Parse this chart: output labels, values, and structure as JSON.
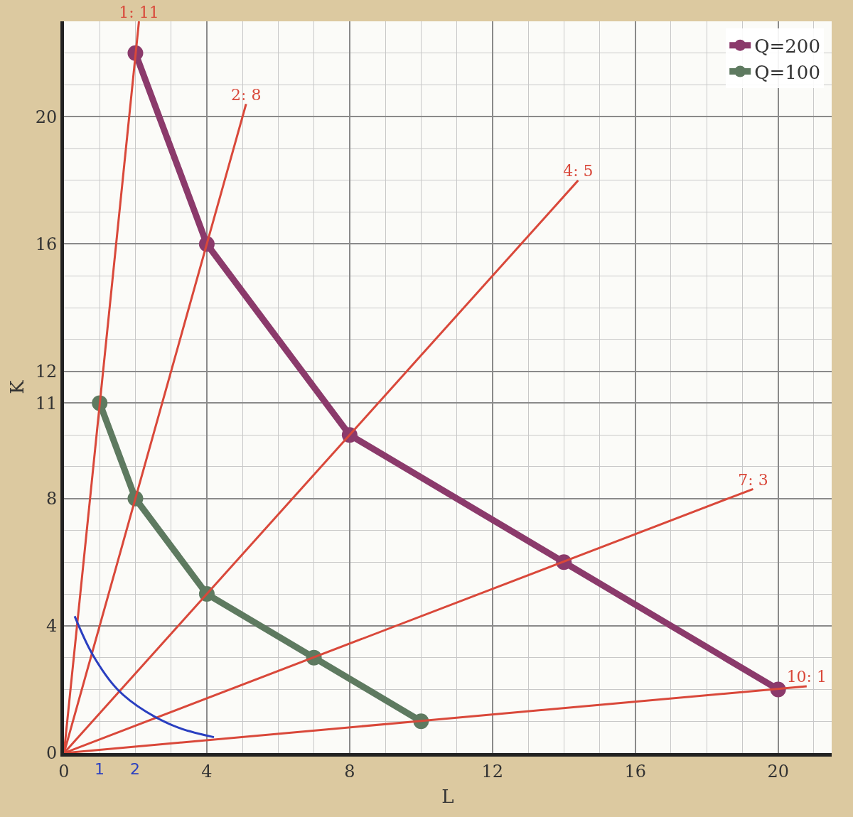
{
  "chart_data": {
    "type": "line",
    "xlabel": "L",
    "ylabel": "K",
    "xlim": [
      0,
      21.5
    ],
    "ylim": [
      0,
      23
    ],
    "xticks": [
      0,
      4,
      8,
      12,
      16,
      20
    ],
    "yticks": [
      0,
      4,
      8,
      11,
      12,
      16,
      20
    ],
    "grid": true,
    "legend": "top right",
    "marker": "circle",
    "line_style": "solid",
    "series": [
      {
        "name": "Q=200",
        "color": "#8b3a6b",
        "x": [
          2,
          4,
          8,
          14,
          20
        ],
        "values": [
          22,
          16,
          10,
          6,
          2
        ]
      },
      {
        "name": "Q=100",
        "color": "#5e7a60",
        "x": [
          1,
          2,
          4,
          7,
          10
        ],
        "values": [
          11,
          8,
          5,
          3,
          1
        ]
      },
      {
        "name": "1: 11",
        "marker": "none",
        "color": "#d9483a",
        "x": [
          0,
          2.1
        ],
        "values": [
          0,
          23
        ]
      },
      {
        "name": "2: 8",
        "marker": "none",
        "color": "#d9483a",
        "x": [
          0,
          5.1
        ],
        "values": [
          0,
          20.4
        ]
      },
      {
        "name": "4: 5",
        "marker": "none",
        "color": "#d9483a",
        "x": [
          0,
          14.4
        ],
        "values": [
          0,
          18
        ]
      },
      {
        "name": "7: 3",
        "marker": "none",
        "color": "#d9483a",
        "x": [
          0,
          19.3
        ],
        "values": [
          0,
          8.3
        ]
      },
      {
        "name": "10: 1",
        "marker": "none",
        "color": "#d9483a",
        "x": [
          0,
          20.8
        ],
        "values": [
          0,
          2.1
        ]
      },
      {
        "marker": "none",
        "color": "#2a3fc0",
        "x": [
          0.3,
          0.8,
          1.5,
          2.3,
          3.2,
          4.2
        ],
        "values": [
          4.3,
          3.1,
          2,
          1.3,
          0.8,
          0.5
        ]
      }
    ],
    "annotations": [
      {
        "text": "1",
        "x": 1
      },
      {
        "text": "2",
        "x": 2
      }
    ]
  }
}
